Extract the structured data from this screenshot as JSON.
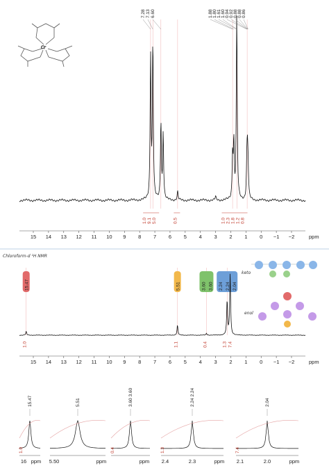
{
  "chart_data": [
    {
      "type": "line",
      "title": "",
      "xlabel": "ppm",
      "xlim": [
        16.5,
        -4
      ],
      "x_ticks": [
        "15",
        "14",
        "13",
        "12",
        "11",
        "10",
        "9",
        "8",
        "7",
        "6",
        "5",
        "4",
        "3",
        "2",
        "1",
        "0",
        "−1",
        "−2"
      ],
      "peak_labels": [
        "7.28",
        "7.13",
        "6.60",
        "1.88",
        "1.80",
        "1.61",
        "1.60",
        "0.94",
        "0.92",
        "0.88",
        "0.88",
        "0.86"
      ],
      "integrals": [
        {
          "ppm": 7.2,
          "labels": [
            "1.0",
            "9.1",
            "5.0"
          ]
        },
        {
          "ppm": 5.5,
          "labels": [
            "0.5"
          ]
        },
        {
          "ppm": 1.7,
          "labels": [
            "1.0",
            "2.3",
            "1.8",
            "1.2",
            "0.8"
          ]
        }
      ],
      "series": [
        {
          "peaks": [
            [
              7.28,
              0.82
            ],
            [
              7.13,
              0.9
            ],
            [
              6.6,
              0.45
            ],
            [
              6.45,
              0.38
            ],
            [
              5.5,
              0.05
            ],
            [
              3.0,
              0.02
            ],
            [
              1.88,
              0.25
            ],
            [
              1.8,
              0.32
            ],
            [
              1.61,
              0.58
            ],
            [
              1.6,
              0.5
            ],
            [
              0.94,
              0.2
            ],
            [
              0.9,
              0.22
            ],
            [
              0.86,
              0.15
            ]
          ]
        }
      ]
    },
    {
      "type": "line",
      "header_note": "Chloroform-d ¹H NMR",
      "xlabel": "ppm",
      "xlim": [
        16.5,
        -4
      ],
      "x_ticks": [
        "15",
        "14",
        "13",
        "12",
        "11",
        "10",
        "9",
        "8",
        "7",
        "6",
        "5",
        "4",
        "3",
        "2",
        "1",
        "0",
        "−1",
        "−2"
      ],
      "peak_flags": [
        {
          "ppm": 15.47,
          "labels": [
            "15.47"
          ],
          "color": "#e26a6a"
        },
        {
          "ppm": 5.51,
          "labels": [
            "5.51"
          ],
          "color": "#f2b84b"
        },
        {
          "ppm": 3.6,
          "labels": [
            "3.60",
            "3.60"
          ],
          "color": "#7fc26b"
        },
        {
          "ppm": 2.24,
          "labels": [
            "2.24",
            "2.24",
            "2.04"
          ],
          "color": "#6d9fd8"
        }
      ],
      "integrals": [
        {
          "ppm": 15.47,
          "labels": [
            "1.0"
          ]
        },
        {
          "ppm": 5.51,
          "labels": [
            "1.1"
          ]
        },
        {
          "ppm": 3.6,
          "labels": [
            "0.4"
          ]
        },
        {
          "ppm": 2.14,
          "labels": [
            "1.3",
            "7.4"
          ]
        }
      ],
      "series": [
        {
          "peaks": [
            [
              15.47,
              0.06
            ],
            [
              5.51,
              0.16
            ],
            [
              3.6,
              0.03
            ],
            [
              2.24,
              0.55
            ],
            [
              2.04,
              0.98
            ]
          ]
        }
      ]
    }
  ],
  "annotations": {
    "keto_label": "keto",
    "enol_label": "enol",
    "structure_top_metal": "Cr",
    "structure_top_oxygen": "O"
  },
  "zooms": [
    {
      "peak_label": "15.47",
      "integral": "1.0",
      "ticks": [
        "16",
        "ppm"
      ]
    },
    {
      "peak_label": "5.51",
      "integral": "",
      "ticks": [
        "5.50",
        "ppm"
      ]
    },
    {
      "peak_label": "3.60 3.60",
      "integral": "0.4",
      "ticks": [
        "ppm"
      ]
    },
    {
      "peak_label": "2.24 2.24",
      "integral": "1.3",
      "ticks": [
        "2.4",
        "2.3",
        "ppm"
      ]
    },
    {
      "peak_label": "2.04",
      "integral": "7.4",
      "ticks": [
        "2.1",
        "2.0",
        "ppm"
      ]
    }
  ]
}
